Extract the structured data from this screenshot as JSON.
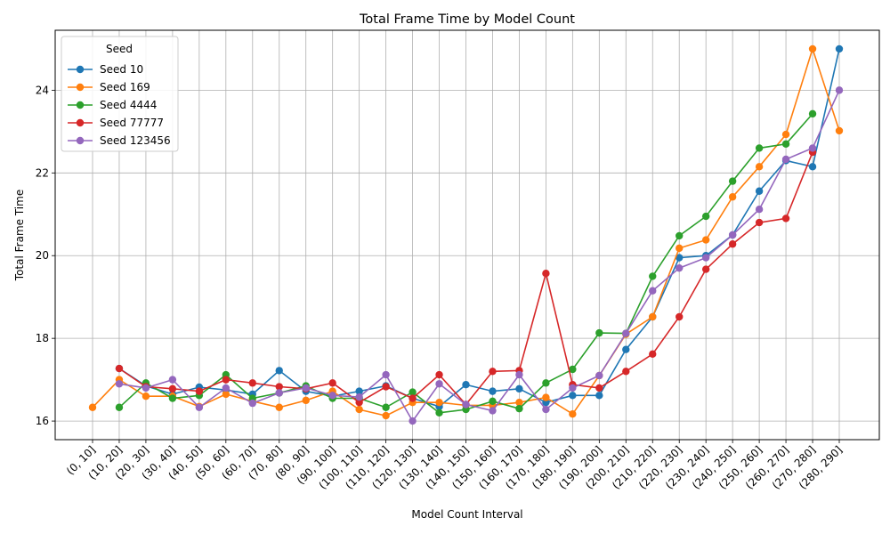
{
  "chart_data": {
    "type": "line",
    "title": "Total Frame Time by Model Count",
    "xlabel": "Model Count Interval",
    "ylabel": "Total Frame Time",
    "categories": [
      "(0, 10]",
      "(10, 20]",
      "(20, 30]",
      "(30, 40]",
      "(40, 50]",
      "(50, 60]",
      "(60, 70]",
      "(70, 80]",
      "(80, 90]",
      "(90, 100]",
      "(100, 110]",
      "(110, 120]",
      "(120, 130]",
      "(130, 140]",
      "(140, 150]",
      "(150, 160]",
      "(160, 170]",
      "(170, 180]",
      "(180, 190]",
      "(190, 200]",
      "(200, 210]",
      "(210, 220]",
      "(220, 230]",
      "(230, 240]",
      "(240, 250]",
      "(250, 260]",
      "(260, 270]",
      "(270, 280]",
      "(280, 290]"
    ],
    "ylim": [
      15.55,
      25.45
    ],
    "yticks": [
      16,
      18,
      20,
      22,
      24
    ],
    "grid": true,
    "legend": {
      "title": "Seed",
      "placement": "top-left"
    },
    "series": [
      {
        "name": "Seed 10",
        "color": "#1f77b4",
        "values": [
          null,
          17.27,
          16.85,
          16.65,
          16.82,
          16.75,
          16.65,
          17.22,
          16.72,
          16.6,
          16.72,
          16.85,
          16.55,
          16.35,
          16.88,
          16.72,
          16.78,
          16.45,
          16.62,
          16.62,
          17.73,
          18.52,
          19.95,
          20.0,
          20.5,
          21.56,
          22.3,
          22.15,
          25.0
        ]
      },
      {
        "name": "Seed 169",
        "color": "#ff7f0e",
        "values": [
          16.33,
          17.0,
          16.6,
          16.6,
          16.35,
          16.65,
          16.48,
          16.33,
          16.5,
          16.72,
          16.28,
          16.13,
          16.45,
          16.45,
          16.38,
          16.38,
          16.45,
          16.57,
          16.17,
          17.1,
          18.1,
          18.52,
          20.18,
          20.38,
          21.42,
          22.15,
          22.93,
          25.0,
          23.02
        ]
      },
      {
        "name": "Seed 4444",
        "color": "#2ca02c",
        "values": [
          null,
          16.33,
          16.92,
          16.55,
          16.62,
          17.12,
          16.55,
          16.68,
          16.85,
          16.55,
          16.55,
          16.33,
          16.7,
          16.2,
          16.28,
          16.48,
          16.3,
          16.92,
          17.25,
          18.13,
          18.12,
          19.5,
          20.48,
          20.95,
          21.8,
          22.6,
          22.7,
          23.43,
          null
        ]
      },
      {
        "name": "Seed 77777",
        "color": "#d62728",
        "values": [
          null,
          17.27,
          16.83,
          16.78,
          16.72,
          17.0,
          16.92,
          16.83,
          16.78,
          16.92,
          16.45,
          16.83,
          16.55,
          17.12,
          16.4,
          17.2,
          17.22,
          19.57,
          16.88,
          16.8,
          17.2,
          17.62,
          18.52,
          19.67,
          20.28,
          20.8,
          20.9,
          22.5,
          null
        ]
      },
      {
        "name": "Seed 123456",
        "color": "#9467bd",
        "values": [
          null,
          16.9,
          16.8,
          17.0,
          16.33,
          16.8,
          16.43,
          16.68,
          16.8,
          16.62,
          16.58,
          17.12,
          16.0,
          16.9,
          16.4,
          16.25,
          17.12,
          16.28,
          16.8,
          17.1,
          18.12,
          19.15,
          19.7,
          19.95,
          20.5,
          21.12,
          22.33,
          22.6,
          24.0
        ]
      }
    ]
  }
}
